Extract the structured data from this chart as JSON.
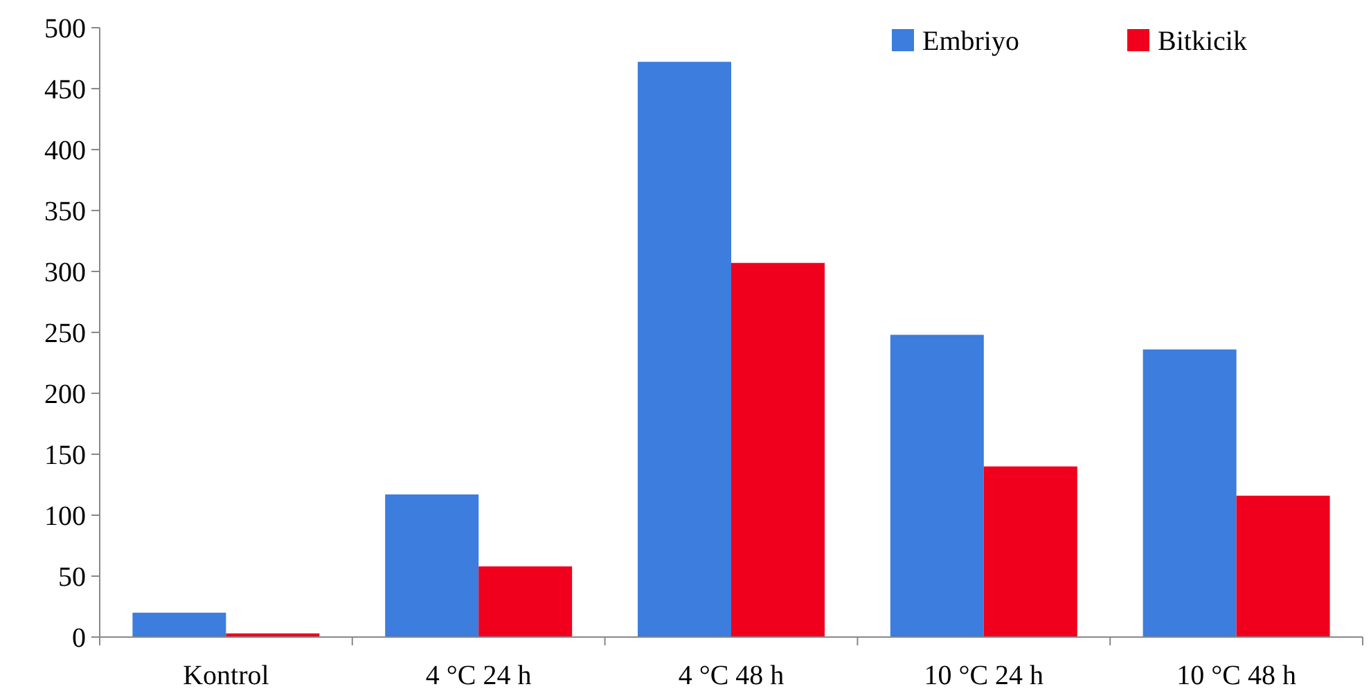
{
  "chart_data": {
    "type": "bar",
    "categories": [
      "Kontrol",
      "4 °C 24 h",
      "4 °C 48 h",
      "10 °C 24 h",
      "10 °C 48 h"
    ],
    "series": [
      {
        "name": "Embriyo",
        "color": "#3c7ddd",
        "values": [
          20,
          117,
          472,
          248,
          236
        ]
      },
      {
        "name": "Bitkicik",
        "color": "#f0001c",
        "values": [
          3,
          58,
          307,
          140,
          116
        ]
      }
    ],
    "ylim": [
      0,
      500
    ],
    "yticks": [
      0,
      50,
      100,
      150,
      200,
      250,
      300,
      350,
      400,
      450,
      500
    ],
    "grid": false,
    "legend": "top right"
  }
}
